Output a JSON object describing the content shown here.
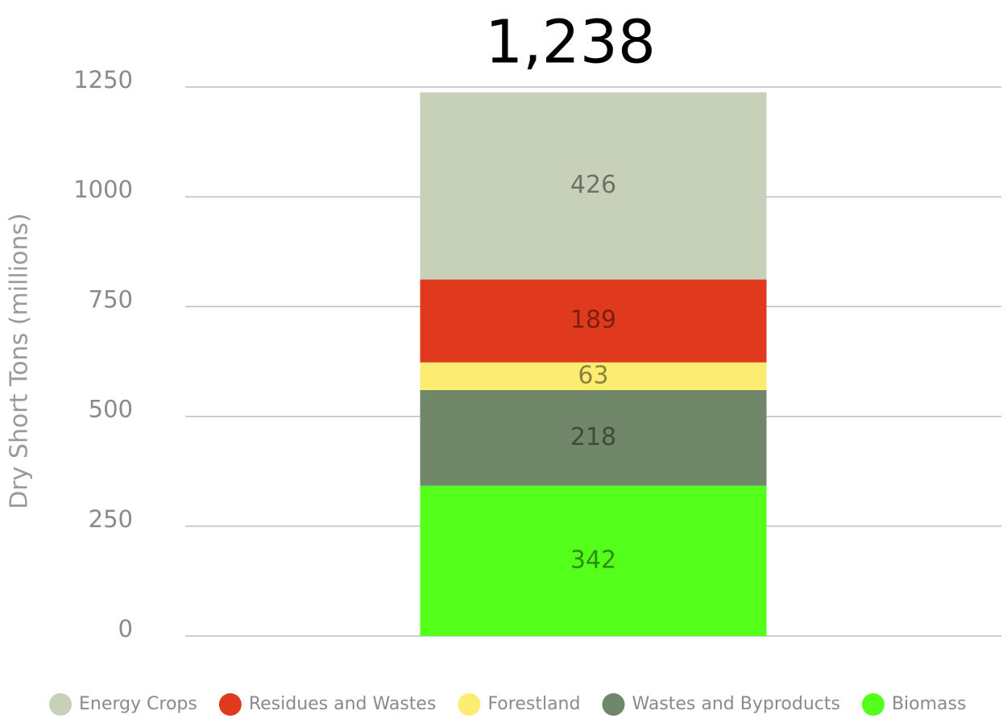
{
  "chart_data": {
    "type": "stacked-bar",
    "total_label": "1,238",
    "y_label": "Dry Short Tons (millions)",
    "categories": [
      null
    ],
    "series": [
      {
        "name": "Energy Crops",
        "color": "#c7d0b9",
        "values": [
          426
        ]
      },
      {
        "name": "Residues and Wastes",
        "color": "#e03a1e",
        "values": [
          189
        ]
      },
      {
        "name": "Forestland",
        "color": "#fced72",
        "values": [
          63
        ]
      },
      {
        "name": "Wastes and Byproducts",
        "color": "#71876a",
        "values": [
          218
        ]
      },
      {
        "name": "Biomass",
        "color": "#55ff1c",
        "values": [
          342
        ]
      }
    ],
    "ylim": [
      0,
      1250
    ],
    "yticks": [
      0,
      250,
      500,
      750,
      1000,
      1250
    ],
    "grid": true,
    "legend": "bottom"
  }
}
